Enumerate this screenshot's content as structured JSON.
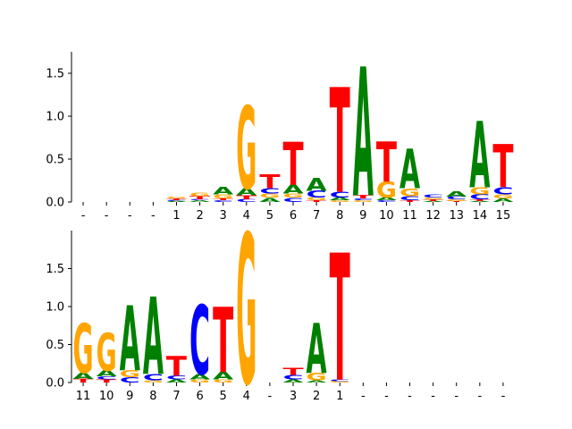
{
  "colors": {
    "A": "#008000",
    "C": "#0000ff",
    "G": "#ffa500",
    "T": "#ff0000"
  },
  "chart_data": [
    {
      "type": "sequence-logo",
      "title": "",
      "ylabel": "",
      "ylim": [
        0,
        1.75
      ],
      "yticks": [
        "0.0",
        "0.5",
        "1.0",
        "1.5"
      ],
      "ytick_values": [
        0,
        0.5,
        1.0,
        1.5
      ],
      "categories": [
        "-",
        "-",
        "-",
        "-",
        "1",
        "2",
        "3",
        "4",
        "5",
        "6",
        "7",
        "8",
        "9",
        "10",
        "11",
        "12",
        "13",
        "14",
        "15"
      ],
      "positions": [
        [],
        [],
        [],
        [],
        [
          {
            "b": "A",
            "h": 0.01
          },
          {
            "b": "C",
            "h": 0.01
          },
          {
            "b": "T",
            "h": 0.02
          },
          {
            "b": "G",
            "h": 0.02
          }
        ],
        [
          {
            "b": "A",
            "h": 0.02
          },
          {
            "b": "C",
            "h": 0.01
          },
          {
            "b": "T",
            "h": 0.04
          },
          {
            "b": "G",
            "h": 0.04
          }
        ],
        [
          {
            "b": "C",
            "h": 0.02
          },
          {
            "b": "T",
            "h": 0.02
          },
          {
            "b": "G",
            "h": 0.05
          },
          {
            "b": "A",
            "h": 0.09
          }
        ],
        [
          {
            "b": "C",
            "h": 0.03
          },
          {
            "b": "T",
            "h": 0.05
          },
          {
            "b": "A",
            "h": 0.08
          },
          {
            "b": "G",
            "h": 0.96
          }
        ],
        [
          {
            "b": "A",
            "h": 0.05
          },
          {
            "b": "G",
            "h": 0.05
          },
          {
            "b": "C",
            "h": 0.06
          },
          {
            "b": "T",
            "h": 0.16
          }
        ],
        [
          {
            "b": "C",
            "h": 0.05
          },
          {
            "b": "G",
            "h": 0.05
          },
          {
            "b": "A",
            "h": 0.1
          },
          {
            "b": "T",
            "h": 0.5
          }
        ],
        [
          {
            "b": "T",
            "h": 0.02
          },
          {
            "b": "G",
            "h": 0.03
          },
          {
            "b": "C",
            "h": 0.08
          },
          {
            "b": "A",
            "h": 0.15
          }
        ],
        [
          {
            "b": "G",
            "h": 0.02
          },
          {
            "b": "A",
            "h": 0.03
          },
          {
            "b": "C",
            "h": 0.07
          },
          {
            "b": "T",
            "h": 1.22
          }
        ],
        [
          {
            "b": "G",
            "h": 0.02
          },
          {
            "b": "C",
            "h": 0.02
          },
          {
            "b": "T",
            "h": 0.04
          },
          {
            "b": "A",
            "h": 1.5
          }
        ],
        [
          {
            "b": "C",
            "h": 0.02
          },
          {
            "b": "A",
            "h": 0.03
          },
          {
            "b": "G",
            "h": 0.19
          },
          {
            "b": "T",
            "h": 0.47
          }
        ],
        [
          {
            "b": "T",
            "h": 0.02
          },
          {
            "b": "C",
            "h": 0.05
          },
          {
            "b": "G",
            "h": 0.09
          },
          {
            "b": "A",
            "h": 0.46
          }
        ],
        [
          {
            "b": "A",
            "h": 0.01
          },
          {
            "b": "T",
            "h": 0.02
          },
          {
            "b": "G",
            "h": 0.02
          },
          {
            "b": "C",
            "h": 0.03
          }
        ],
        [
          {
            "b": "T",
            "h": 0.01
          },
          {
            "b": "G",
            "h": 0.02
          },
          {
            "b": "C",
            "h": 0.03
          },
          {
            "b": "A",
            "h": 0.06
          }
        ],
        [
          {
            "b": "A",
            "h": 0.01
          },
          {
            "b": "T",
            "h": 0.02
          },
          {
            "b": "C",
            "h": 0.06
          },
          {
            "b": "G",
            "h": 0.08
          },
          {
            "b": "A",
            "h": 0.77
          }
        ],
        [
          {
            "b": "A",
            "h": 0.04
          },
          {
            "b": "G",
            "h": 0.05
          },
          {
            "b": "C",
            "h": 0.08
          },
          {
            "b": "T",
            "h": 0.5
          }
        ]
      ]
    },
    {
      "type": "sequence-logo",
      "title": "",
      "ylabel": "",
      "ylim": [
        0,
        2.0
      ],
      "yticks": [
        "0.0",
        "0.5",
        "1.0",
        "1.5"
      ],
      "ytick_values": [
        0,
        0.5,
        1.0,
        1.5
      ],
      "categories": [
        "11",
        "10",
        "9",
        "8",
        "7",
        "6",
        "5",
        "4",
        "-",
        "3",
        "2",
        "1",
        "-",
        "-",
        "-",
        "-",
        "-",
        "-",
        "-"
      ],
      "positions": [
        [
          {
            "b": "T",
            "h": 0.05
          },
          {
            "b": "A",
            "h": 0.08
          },
          {
            "b": "G",
            "h": 0.65
          }
        ],
        [
          {
            "b": "T",
            "h": 0.04
          },
          {
            "b": "C",
            "h": 0.04
          },
          {
            "b": "A",
            "h": 0.08
          },
          {
            "b": "G",
            "h": 0.5
          }
        ],
        [
          {
            "b": "C",
            "h": 0.07
          },
          {
            "b": "G",
            "h": 0.09
          },
          {
            "b": "A",
            "h": 0.86
          }
        ],
        [
          {
            "b": "G",
            "h": 0.03
          },
          {
            "b": "C",
            "h": 0.08
          },
          {
            "b": "A",
            "h": 1.02
          }
        ],
        [
          {
            "b": "A",
            "h": 0.04
          },
          {
            "b": "C",
            "h": 0.05
          },
          {
            "b": "T",
            "h": 0.26
          }
        ],
        [
          {
            "b": "G",
            "h": 0.04
          },
          {
            "b": "A",
            "h": 0.07
          },
          {
            "b": "C",
            "h": 0.91
          }
        ],
        [
          {
            "b": "G",
            "h": 0.04
          },
          {
            "b": "A",
            "h": 0.1
          },
          {
            "b": "T",
            "h": 0.86
          }
        ],
        [
          {
            "b": "G",
            "h": 1.97
          }
        ],
        [],
        [
          {
            "b": "A",
            "h": 0.04
          },
          {
            "b": "C",
            "h": 0.06
          },
          {
            "b": "T",
            "h": 0.09
          }
        ],
        [
          {
            "b": "A",
            "h": 0.03
          },
          {
            "b": "G",
            "h": 0.1
          },
          {
            "b": "A",
            "h": 0.66
          }
        ],
        [
          {
            "b": "G",
            "h": 0.02
          },
          {
            "b": "C",
            "h": 0.02
          },
          {
            "b": "T",
            "h": 1.67
          }
        ],
        [],
        [],
        [],
        [],
        [],
        [],
        []
      ]
    }
  ]
}
